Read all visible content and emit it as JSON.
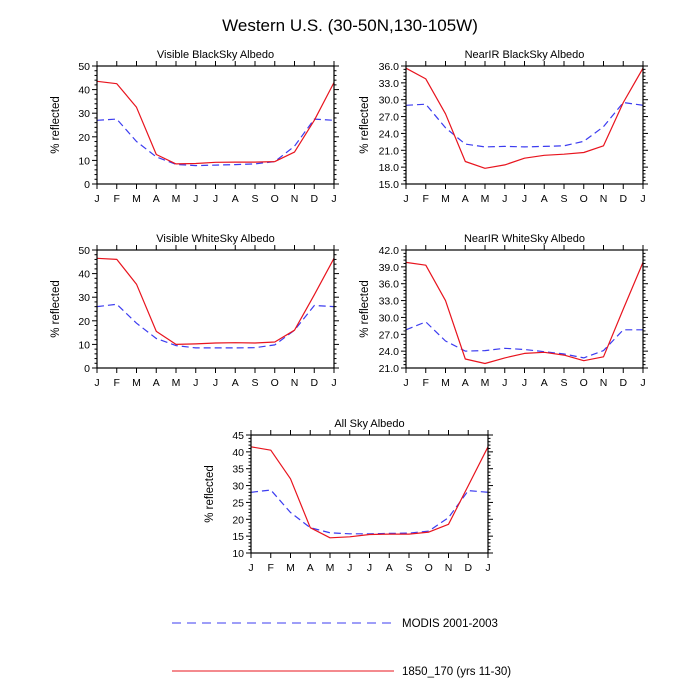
{
  "figure": {
    "title": "Western U.S. (30-50N,130-105W)"
  },
  "legend": {
    "entries": [
      {
        "label": "MODIS 2001-2003",
        "color": "#3c3cf0",
        "style": "dashed"
      },
      {
        "label": "1850_170 (yrs 11-30)",
        "color": "#e8141e",
        "style": "solid"
      }
    ]
  },
  "chart_data": [
    {
      "type": "line",
      "title": "Visible BlackSky Albedo",
      "xlabel": "",
      "ylabel": "% reflected",
      "categories": [
        "J",
        "F",
        "M",
        "A",
        "M",
        "J",
        "J",
        "A",
        "S",
        "O",
        "N",
        "D",
        "J"
      ],
      "ylim": [
        0,
        50
      ],
      "yticks": [
        "0",
        "10",
        "20",
        "30",
        "40",
        "50"
      ],
      "series": [
        {
          "name": "MODIS 2001-2003",
          "values": [
            27.0,
            27.5,
            18.0,
            11.5,
            8.3,
            7.8,
            8.0,
            8.2,
            8.5,
            9.5,
            16.0,
            27.5,
            27.0
          ]
        },
        {
          "name": "1850_170 (yrs 11-30)",
          "values": [
            43.5,
            42.5,
            32.5,
            12.5,
            8.5,
            8.7,
            9.2,
            9.3,
            9.3,
            9.5,
            13.5,
            27.0,
            43.0
          ]
        }
      ]
    },
    {
      "type": "line",
      "title": "NearIR BlackSky Albedo",
      "xlabel": "",
      "ylabel": "% reflected",
      "categories": [
        "J",
        "F",
        "M",
        "A",
        "M",
        "J",
        "J",
        "A",
        "S",
        "O",
        "N",
        "D",
        "J"
      ],
      "ylim": [
        15,
        36
      ],
      "yticks": [
        "15.0",
        "18.0",
        "21.0",
        "24.0",
        "27.0",
        "30.0",
        "33.0",
        "36.0"
      ],
      "series": [
        {
          "name": "MODIS 2001-2003",
          "values": [
            29.0,
            29.2,
            25.0,
            22.1,
            21.6,
            21.7,
            21.6,
            21.7,
            21.8,
            22.6,
            25.2,
            29.5,
            29.0
          ]
        },
        {
          "name": "1850_170 (yrs 11-30)",
          "values": [
            35.6,
            33.7,
            27.5,
            19.0,
            17.8,
            18.4,
            19.6,
            20.1,
            20.3,
            20.6,
            21.8,
            29.5,
            35.6
          ]
        }
      ]
    },
    {
      "type": "line",
      "title": "Visible WhiteSky Albedo",
      "xlabel": "",
      "ylabel": "% reflected",
      "categories": [
        "J",
        "F",
        "M",
        "A",
        "M",
        "J",
        "J",
        "A",
        "S",
        "O",
        "N",
        "D",
        "J"
      ],
      "ylim": [
        0,
        50
      ],
      "yticks": [
        "0",
        "10",
        "20",
        "30",
        "40",
        "50"
      ],
      "series": [
        {
          "name": "MODIS 2001-2003",
          "values": [
            26.0,
            27.0,
            19.0,
            12.5,
            9.5,
            8.5,
            8.5,
            8.5,
            8.6,
            9.8,
            16.0,
            26.5,
            26.0
          ]
        },
        {
          "name": "1850_170 (yrs 11-30)",
          "values": [
            46.5,
            46.0,
            35.5,
            15.5,
            10.0,
            10.2,
            10.6,
            10.7,
            10.6,
            11.0,
            16.0,
            31.0,
            46.5
          ]
        }
      ]
    },
    {
      "type": "line",
      "title": "NearIR WhiteSky Albedo",
      "xlabel": "",
      "ylabel": "% reflected",
      "categories": [
        "J",
        "F",
        "M",
        "A",
        "M",
        "J",
        "J",
        "A",
        "S",
        "O",
        "N",
        "D",
        "J"
      ],
      "ylim": [
        21,
        42
      ],
      "yticks": [
        "21.0",
        "24.0",
        "27.0",
        "30.0",
        "33.0",
        "36.0",
        "39.0",
        "42.0"
      ],
      "series": [
        {
          "name": "MODIS 2001-2003",
          "values": [
            27.8,
            29.2,
            25.8,
            24.0,
            24.1,
            24.5,
            24.3,
            23.9,
            23.5,
            22.8,
            24.1,
            27.8,
            27.8
          ]
        },
        {
          "name": "1850_170 (yrs 11-30)",
          "values": [
            39.8,
            39.3,
            33.0,
            22.6,
            21.8,
            22.8,
            23.6,
            23.8,
            23.3,
            22.3,
            23.0,
            31.5,
            39.8
          ]
        }
      ]
    },
    {
      "type": "line",
      "title": "All Sky Albedo",
      "xlabel": "",
      "ylabel": "% reflected",
      "categories": [
        "J",
        "F",
        "M",
        "A",
        "M",
        "J",
        "J",
        "A",
        "S",
        "O",
        "N",
        "D",
        "J"
      ],
      "ylim": [
        10,
        45
      ],
      "yticks": [
        "10",
        "15",
        "20",
        "25",
        "30",
        "35",
        "40",
        "45"
      ],
      "series": [
        {
          "name": "MODIS 2001-2003",
          "values": [
            28.0,
            28.7,
            22.0,
            17.5,
            16.0,
            15.7,
            15.7,
            15.8,
            15.9,
            16.5,
            20.5,
            28.5,
            28.0
          ]
        },
        {
          "name": "1850_170 (yrs 11-30)",
          "values": [
            41.5,
            40.5,
            32.0,
            17.5,
            14.5,
            14.8,
            15.5,
            15.6,
            15.6,
            16.2,
            18.5,
            30.0,
            41.5
          ]
        }
      ]
    }
  ]
}
